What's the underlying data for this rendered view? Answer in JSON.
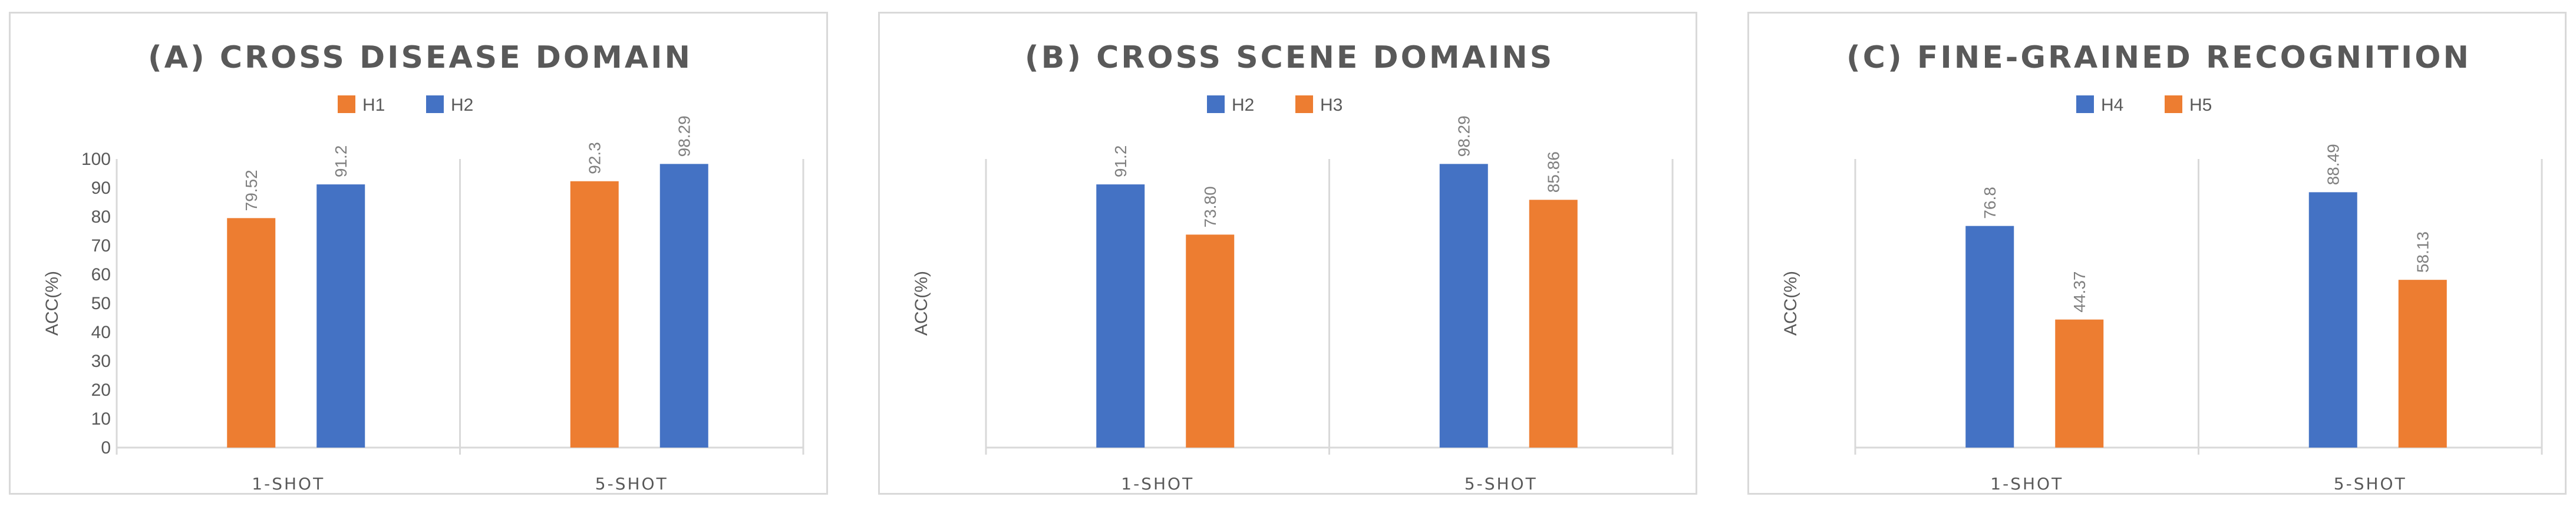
{
  "colors": {
    "H1": "#ed7d31",
    "H2": "#4472c4",
    "H3": "#ed7d31",
    "H4": "#4472c4",
    "H5": "#ed7d31",
    "grid": "#d9d9d9",
    "text": "#595959"
  },
  "chart_data": [
    {
      "type": "bar",
      "title": "(A) CROSS DISEASE DOMAIN",
      "ylabel": "ACC(%)",
      "xlabel": "",
      "categories": [
        "1-SHOT",
        "5-SHOT"
      ],
      "series": [
        {
          "name": "H1",
          "values": [
            79.52,
            92.3
          ],
          "labels": [
            "79.52",
            "92.3"
          ]
        },
        {
          "name": "H2",
          "values": [
            91.2,
            98.29
          ],
          "labels": [
            "91.2",
            "98.29"
          ]
        }
      ],
      "ylim": [
        0,
        100
      ],
      "yticks": [
        0,
        10,
        20,
        30,
        40,
        50,
        60,
        70,
        80,
        90,
        100
      ],
      "show_y_ticks": true,
      "legend": "top-center",
      "grid": false
    },
    {
      "type": "bar",
      "title": "(B) CROSS SCENE DOMAINS",
      "ylabel": "ACC(%)",
      "xlabel": "",
      "categories": [
        "1-SHOT",
        "5-SHOT"
      ],
      "series": [
        {
          "name": "H2",
          "values": [
            91.2,
            98.29
          ],
          "labels": [
            "91.2",
            "98.29"
          ]
        },
        {
          "name": "H3",
          "values": [
            73.8,
            85.86
          ],
          "labels": [
            "73.80",
            "85.86"
          ]
        }
      ],
      "ylim": [
        0,
        100
      ],
      "yticks": [],
      "show_y_ticks": false,
      "legend": "top-center",
      "grid": false
    },
    {
      "type": "bar",
      "title": "(C) FINE-GRAINED RECOGNITION",
      "ylabel": "ACC(%)",
      "xlabel": "",
      "categories": [
        "1-SHOT",
        "5-SHOT"
      ],
      "series": [
        {
          "name": "H4",
          "values": [
            76.8,
            88.49
          ],
          "labels": [
            "76.8",
            "88.49"
          ]
        },
        {
          "name": "H5",
          "values": [
            44.37,
            58.13
          ],
          "labels": [
            "44.37",
            "58.13"
          ]
        }
      ],
      "ylim": [
        0,
        100
      ],
      "yticks": [],
      "show_y_ticks": false,
      "legend": "top-center",
      "grid": false
    }
  ]
}
